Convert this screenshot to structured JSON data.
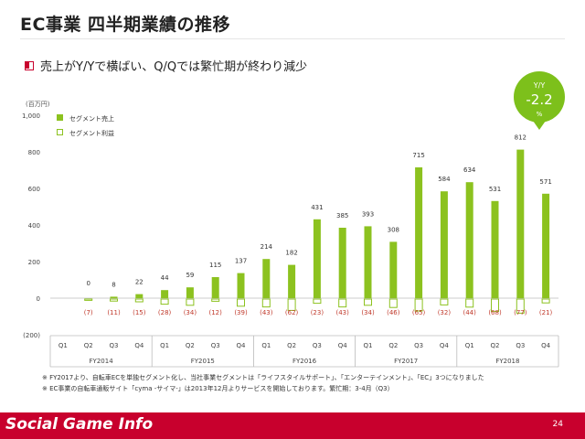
{
  "header": {
    "title": "EC事業 四半期業績の推移"
  },
  "subtitle": "売上がY/Yで横ばい、Q/Qでは繁忙期が終わり減少",
  "unit_label": "(百万円)",
  "callout": {
    "top": "Y/Y",
    "value": "-2.2",
    "unit": "%"
  },
  "colors": {
    "sales": "#8cc21f",
    "profit": "#8cc21f",
    "negative_label": "#c0392b",
    "callout": "#7dc01b",
    "brand_red": "#c8002d"
  },
  "chart_data": {
    "type": "bar",
    "title": "",
    "xlabel": "",
    "ylabel": "(百万円)",
    "ylim": [
      -200,
      1000
    ],
    "yticks": [
      1000,
      800,
      600,
      400,
      200,
      0,
      -200
    ],
    "ytick_labels": [
      "1,000",
      "800",
      "600",
      "400",
      "200",
      "0",
      "(200)"
    ],
    "legend_position": "top-left",
    "categories": [
      "Q1",
      "Q2",
      "Q3",
      "Q4",
      "Q1",
      "Q2",
      "Q3",
      "Q4",
      "Q1",
      "Q2",
      "Q3",
      "Q4",
      "Q1",
      "Q2",
      "Q3",
      "Q4",
      "Q1",
      "Q2",
      "Q3",
      "Q4"
    ],
    "groups": [
      {
        "label": "FY2014",
        "count": 3
      },
      {
        "label": "FY2015",
        "count": 4
      },
      {
        "label": "FY2016",
        "count": 4
      },
      {
        "label": "FY2017",
        "count": 4
      },
      {
        "label": "FY2018",
        "count": 4
      }
    ],
    "first_group_offset": 1,
    "series": [
      {
        "name": "セグメント売上",
        "values": [
          null,
          0,
          8,
          22,
          44,
          59,
          115,
          137,
          214,
          182,
          431,
          385,
          393,
          308,
          715,
          584,
          634,
          531,
          812,
          571
        ],
        "labels": [
          null,
          "0",
          "8",
          "22",
          "44",
          "59",
          "115",
          "137",
          "214",
          "182",
          "431",
          "385",
          "393",
          "308",
          "715",
          "584",
          "634",
          "531",
          "812",
          "571"
        ]
      },
      {
        "name": "セグメント利益",
        "values": [
          null,
          -7,
          -11,
          -15,
          -28,
          -34,
          -12,
          -39,
          -43,
          -62,
          -23,
          -43,
          -34,
          -46,
          -65,
          -32,
          -44,
          -68,
          -77,
          -21
        ],
        "labels": [
          null,
          "(7)",
          "(11)",
          "(15)",
          "(28)",
          "(34)",
          "(12)",
          "(39)",
          "(43)",
          "(62)",
          "(23)",
          "(43)",
          "(34)",
          "(46)",
          "(65)",
          "(32)",
          "(44)",
          "(68)",
          "(77)",
          "(21)"
        ]
      }
    ]
  },
  "footnotes": [
    "※ FY2017より、自転車ECを単独セグメント化し、当社事業セグメントは「ライフスタイルサポート」、「エンターテインメント」、「EC」3つになりました",
    "※ EC事業の自転車通販サイト「cyma -サイマ-」は2013年12月よりサービスを開始しております。繁忙期：3-4月（Q3）"
  ],
  "footer": {
    "logo": "Social Game Info",
    "page_number": "24"
  }
}
